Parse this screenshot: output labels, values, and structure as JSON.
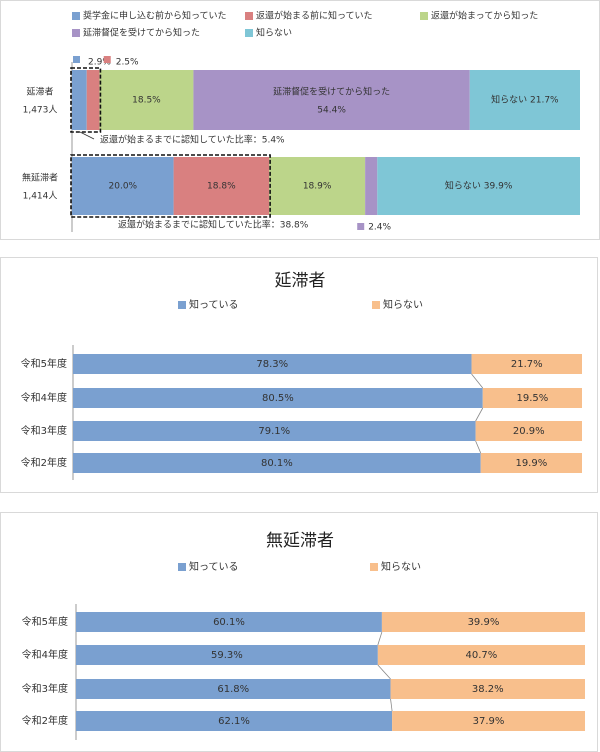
{
  "chart_data": [
    {
      "type": "bar",
      "stacked": true,
      "orientation": "horizontal",
      "legend_position": "top",
      "categories": [
        "延滞者\n1,473人",
        "無延滞者\n1,414人"
      ],
      "category_lines": [
        [
          "延滞者",
          "1,473人"
        ],
        [
          "無延滞者",
          "1,414人"
        ]
      ],
      "xlim": [
        0,
        100
      ],
      "series": [
        {
          "name": "奨学金に申し込む前から知っていた",
          "color": "#7aa0d0",
          "values": [
            2.9,
            20.0
          ],
          "labels": [
            "2.9%",
            "20.0%"
          ]
        },
        {
          "name": "返還が始まる前に知っていた",
          "color": "#d98080",
          "values": [
            2.5,
            18.8
          ],
          "labels": [
            "2.5%",
            "18.8%"
          ]
        },
        {
          "name": "返還が始まってから知った",
          "color": "#bcd58a",
          "values": [
            18.5,
            18.9
          ],
          "labels": [
            "18.5%",
            "18.9%"
          ]
        },
        {
          "name": "延滞督促を受けてから知った",
          "color": "#a793c6",
          "values": [
            54.4,
            2.4
          ],
          "labels": [
            "延滞督促を受けてから知った\n54.4%",
            "2.4%"
          ]
        },
        {
          "name": "知らない",
          "color": "#7fc6d6",
          "values": [
            21.7,
            39.9
          ],
          "labels": [
            "知らない 21.7%",
            "知らない 39.9%"
          ]
        }
      ],
      "annotations": [
        "返還が始まるまでに認知していた比率：5.4%",
        "返還が始まるまでに認知していた比率：38.8%"
      ]
    },
    {
      "type": "bar",
      "stacked": true,
      "orientation": "horizontal",
      "title": "延滞者",
      "legend_position": "top",
      "categories": [
        "令和5年度",
        "令和4年度",
        "令和3年度",
        "令和2年度"
      ],
      "xlim": [
        0,
        100
      ],
      "series": [
        {
          "name": "知っている",
          "color": "#7aa0d0",
          "values": [
            78.3,
            80.5,
            79.1,
            80.1
          ],
          "labels": [
            "78.3%",
            "80.5%",
            "79.1%",
            "80.1%"
          ]
        },
        {
          "name": "知らない",
          "color": "#f8bf8c",
          "values": [
            21.7,
            19.5,
            20.9,
            19.9
          ],
          "labels": [
            "21.7%",
            "19.5%",
            "20.9%",
            "19.9%"
          ]
        }
      ]
    },
    {
      "type": "bar",
      "stacked": true,
      "orientation": "horizontal",
      "title": "無延滞者",
      "legend_position": "top",
      "categories": [
        "令和5年度",
        "令和4年度",
        "令和3年度",
        "令和2年度"
      ],
      "xlim": [
        0,
        100
      ],
      "series": [
        {
          "name": "知っている",
          "color": "#7aa0d0",
          "values": [
            60.1,
            59.3,
            61.8,
            62.1
          ],
          "labels": [
            "60.1%",
            "59.3%",
            "61.8%",
            "62.1%"
          ]
        },
        {
          "name": "知らない",
          "color": "#f8bf8c",
          "values": [
            39.9,
            40.7,
            38.2,
            37.9
          ],
          "labels": [
            "39.9%",
            "40.7%",
            "38.2%",
            "37.9%"
          ]
        }
      ]
    }
  ]
}
